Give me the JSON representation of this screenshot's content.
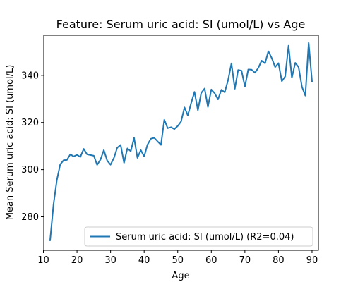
{
  "chart_data": {
    "type": "line",
    "title": "Feature: Serum uric acid:  SI (umol/L) vs Age",
    "xlabel": "Age",
    "ylabel": "Mean Serum uric acid:  SI (umol/L)",
    "xlim": [
      10.1,
      91.9
    ],
    "ylim": [
      265.8,
      357.0
    ],
    "xticks": [
      10,
      20,
      30,
      40,
      50,
      60,
      70,
      80,
      90
    ],
    "yticks": [
      280,
      300,
      320,
      340
    ],
    "grid": false,
    "legend_position": "lower-right",
    "series": [
      {
        "name": "Serum uric acid:  SI (umol/L) (R2=0.04)",
        "color": "#1f77b4",
        "x": [
          12,
          13,
          14,
          15,
          16,
          17,
          18,
          19,
          20,
          21,
          22,
          23,
          24,
          25,
          26,
          27,
          28,
          29,
          30,
          31,
          32,
          33,
          34,
          35,
          36,
          37,
          38,
          39,
          40,
          41,
          42,
          43,
          44,
          45,
          46,
          47,
          48,
          49,
          50,
          51,
          52,
          53,
          54,
          55,
          56,
          57,
          58,
          59,
          60,
          61,
          62,
          63,
          64,
          65,
          66,
          67,
          68,
          69,
          70,
          71,
          72,
          73,
          74,
          75,
          76,
          77,
          78,
          79,
          80,
          81,
          82,
          83,
          84,
          85,
          86,
          87,
          88,
          89,
          90
        ],
        "values": [
          270.0,
          285.2,
          295.5,
          302.2,
          304.0,
          304.1,
          306.5,
          305.6,
          306.3,
          305.4,
          308.8,
          306.5,
          306.2,
          305.9,
          302.0,
          304.3,
          308.3,
          303.8,
          302.1,
          305.0,
          309.3,
          310.5,
          302.9,
          309.0,
          307.8,
          313.5,
          305.0,
          308.3,
          305.6,
          310.6,
          313.1,
          313.5,
          312.0,
          310.5,
          321.2,
          317.6,
          318.0,
          317.2,
          318.5,
          320.4,
          326.4,
          323.0,
          328.3,
          333.0,
          325.2,
          332.5,
          334.4,
          326.6,
          334.0,
          332.4,
          329.8,
          333.9,
          332.8,
          338.0,
          345.1,
          334.3,
          342.3,
          342.0,
          335.2,
          342.5,
          342.4,
          341.1,
          343.2,
          346.2,
          345.1,
          350.2,
          347.3,
          343.5,
          345.2,
          337.5,
          339.5,
          352.6,
          339.0,
          345.3,
          343.5,
          335.1,
          331.4,
          353.8,
          337.3
        ]
      }
    ]
  }
}
